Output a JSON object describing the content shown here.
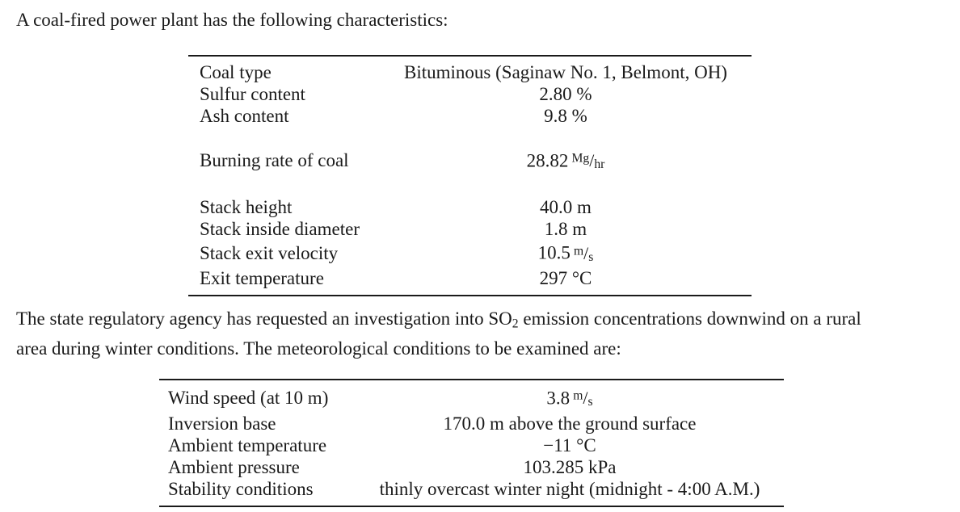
{
  "colors": {
    "text": "#1a1a1a",
    "background": "#ffffff",
    "table_rule": "#1a1a1a"
  },
  "intro_text": "A coal-fired power plant has the following characteristics:",
  "plant_table": {
    "rows": [
      {
        "label": "Coal type",
        "value": "Bituminous (Saginaw No. 1, Belmont, OH)"
      },
      {
        "label": "Sulfur content",
        "value": "2.80 %"
      },
      {
        "label": "Ash content",
        "value": "9.8 %"
      },
      {
        "label": "Burning rate of coal",
        "value": "28.82",
        "unit_num": "Mg",
        "unit_slash": "/",
        "unit_den": "hr"
      },
      {
        "label": "Stack height",
        "value": "40.0 m"
      },
      {
        "label": "Stack inside diameter",
        "value": "1.8 m"
      },
      {
        "label": "Stack exit velocity",
        "value": "10.5",
        "unit_num": "m",
        "unit_slash": "/",
        "unit_den": "s"
      },
      {
        "label": "Exit temperature",
        "value": "297 °C"
      }
    ]
  },
  "paragraph": {
    "line1_pre": "The state regulatory agency has requested an investigation into SO",
    "line1_sub": "2",
    "line1_post": " emission concentrations downwind on a rural",
    "line2": "area during winter conditions. The meteorological conditions to be examined are:"
  },
  "met_table": {
    "rows": [
      {
        "label": "Wind speed (at 10 m)",
        "value": "3.8",
        "unit_num": "m",
        "unit_slash": "/",
        "unit_den": "s"
      },
      {
        "label": "Inversion base",
        "value": "170.0 m above the ground surface"
      },
      {
        "label": "Ambient temperature",
        "value": "−11 °C"
      },
      {
        "label": "Ambient pressure",
        "value": "103.285 kPa"
      },
      {
        "label": "Stability conditions",
        "value": "thinly overcast winter night (midnight - 4:00 A.M.)"
      }
    ]
  }
}
